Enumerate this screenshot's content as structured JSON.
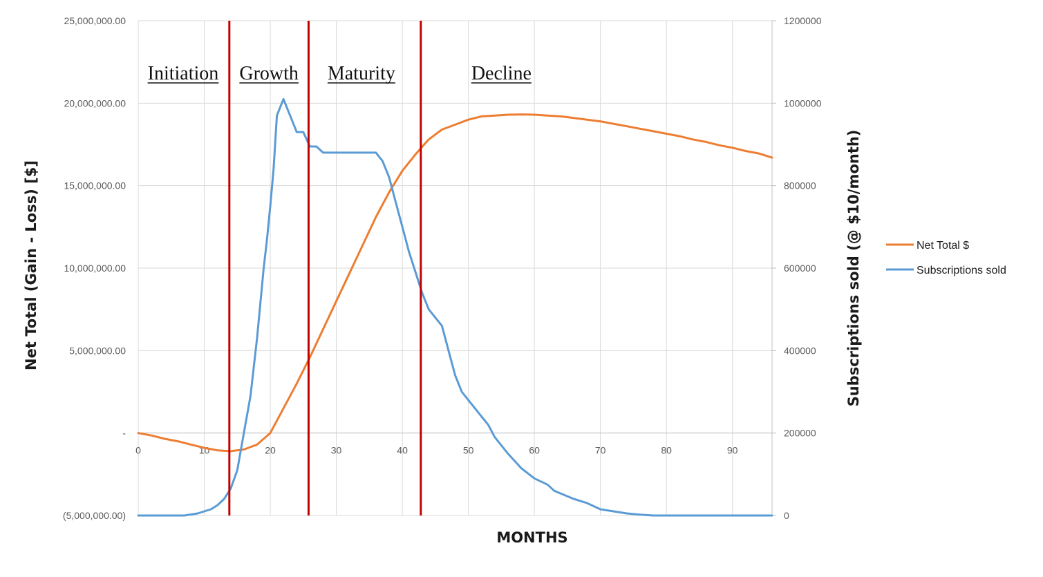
{
  "chart_data": {
    "type": "line",
    "title": "",
    "xlabel": "MONTHS",
    "ylabel_left": "Net Total (Gain - Loss) [$]",
    "ylabel_right": "Subscriptions sold (@ $10/month)",
    "xlim": [
      0,
      96
    ],
    "x_ticks": [
      "0",
      "10",
      "20",
      "30",
      "40",
      "50",
      "60",
      "70",
      "80",
      "90"
    ],
    "x_tick_values": [
      0,
      10,
      20,
      30,
      40,
      50,
      60,
      70,
      80,
      90
    ],
    "ylim_left": [
      -5000000,
      25000000
    ],
    "ylim_right": [
      0,
      1200000
    ],
    "y_left_ticks": [
      "25,000,000.00",
      "20,000,000.00",
      "15,000,000.00",
      "10,000,000.00",
      "5,000,000.00",
      "-",
      "(5,000,000.00)"
    ],
    "y_left_tick_values": [
      25000000,
      20000000,
      15000000,
      10000000,
      5000000,
      0,
      -5000000
    ],
    "y_right_ticks": [
      "1200000",
      "1000000",
      "800000",
      "600000",
      "400000",
      "200000",
      "0"
    ],
    "y_right_tick_values": [
      1200000,
      1000000,
      800000,
      600000,
      400000,
      200000,
      0
    ],
    "grid": true,
    "legend_position": "right",
    "phase_boundaries": [
      13.8,
      25.8,
      42.8
    ],
    "phase_line_color": "#c00000",
    "phases": [
      {
        "label": "Initiation",
        "x": 6.8
      },
      {
        "label": "Growth",
        "x": 19.8
      },
      {
        "label": "Maturity",
        "x": 33.8
      },
      {
        "label": "Decline",
        "x": 55.0
      }
    ],
    "series": [
      {
        "name": "Net Total $",
        "axis": "left",
        "color": "#ED7D31",
        "x": [
          0,
          2,
          4,
          6,
          8,
          10,
          12,
          14,
          16,
          18,
          20,
          22,
          24,
          26,
          28,
          30,
          32,
          34,
          36,
          38,
          40,
          42,
          44,
          46,
          48,
          50,
          52,
          54,
          56,
          58,
          60,
          62,
          64,
          66,
          68,
          70,
          72,
          74,
          76,
          78,
          80,
          82,
          84,
          86,
          88,
          90,
          92,
          94,
          96
        ],
        "values": [
          0,
          -150000,
          -350000,
          -500000,
          -700000,
          -900000,
          -1050000,
          -1100000,
          -1000000,
          -700000,
          0,
          1500000,
          3000000,
          4600000,
          6300000,
          8000000,
          9700000,
          11400000,
          13100000,
          14600000,
          15900000,
          16900000,
          17800000,
          18400000,
          18700000,
          19000000,
          19200000,
          19250000,
          19300000,
          19320000,
          19300000,
          19250000,
          19200000,
          19100000,
          19000000,
          18900000,
          18750000,
          18600000,
          18450000,
          18300000,
          18150000,
          18000000,
          17800000,
          17650000,
          17450000,
          17300000,
          17100000,
          16950000,
          16700000
        ]
      },
      {
        "name": "Subscriptions sold",
        "axis": "right",
        "color": "#5B9BD5",
        "x": [
          0,
          3,
          5,
          7,
          9,
          10,
          11,
          12,
          13,
          14,
          15,
          16,
          17,
          18,
          19,
          19.5,
          20,
          20.5,
          21,
          22,
          23,
          24,
          25,
          26,
          27,
          28,
          30,
          32,
          34,
          36,
          37,
          38,
          39,
          40,
          41,
          42,
          43,
          44,
          45,
          46,
          47,
          48,
          49,
          50,
          52,
          53,
          54,
          56,
          58,
          60,
          62,
          63,
          66,
          68,
          70,
          72,
          74,
          76,
          78,
          80,
          82,
          84,
          90,
          96
        ],
        "values": [
          0,
          0,
          0,
          0,
          5000,
          10000,
          15000,
          25000,
          40000,
          65000,
          110000,
          200000,
          290000,
          430000,
          600000,
          670000,
          750000,
          840000,
          970000,
          1010000,
          970000,
          930000,
          930000,
          895000,
          895000,
          880000,
          880000,
          880000,
          880000,
          880000,
          860000,
          820000,
          760000,
          700000,
          640000,
          590000,
          540000,
          500000,
          480000,
          460000,
          400000,
          340000,
          300000,
          280000,
          240000,
          220000,
          190000,
          150000,
          115000,
          90000,
          75000,
          60000,
          40000,
          30000,
          15000,
          10000,
          5000,
          2000,
          0,
          0,
          0,
          0,
          0,
          0
        ]
      }
    ]
  }
}
